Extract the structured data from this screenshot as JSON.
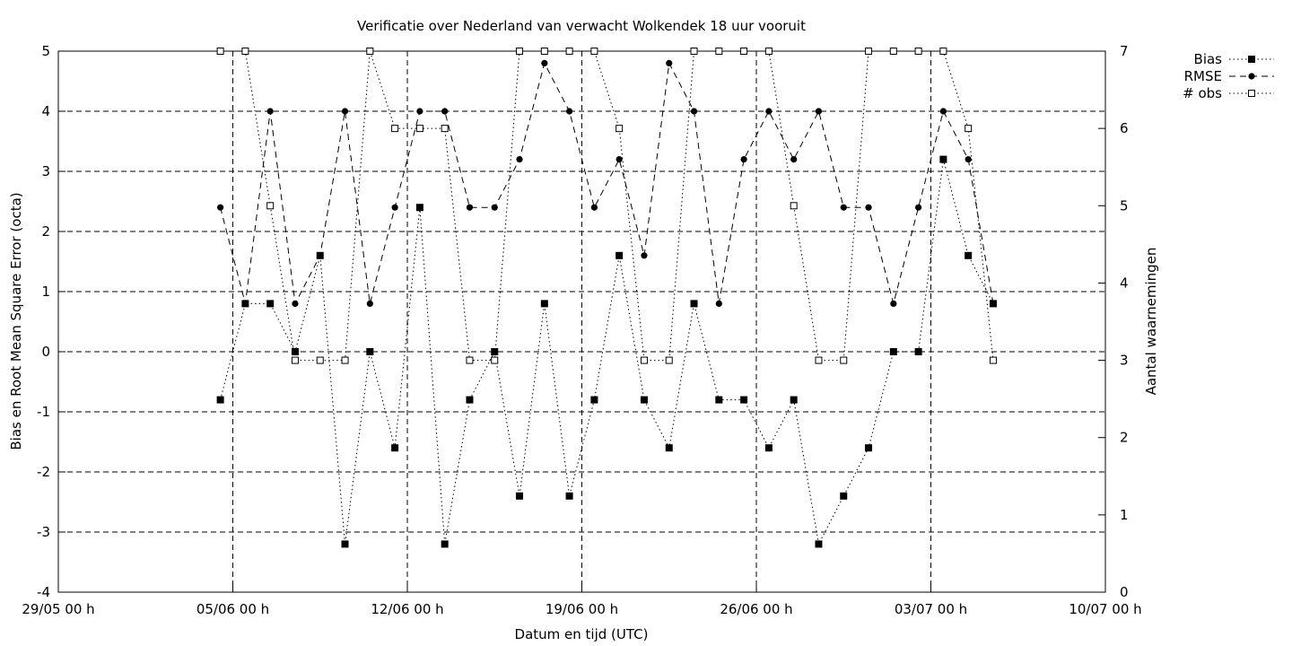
{
  "chart_data": {
    "type": "line",
    "title": "Verificatie over Nederland van verwacht Wolkendek 18 uur vooruit",
    "xlabel": "Datum en tijd (UTC)",
    "ylabel": "Bias en Root Mean Square Error (octa)",
    "y2label": "Aantal waarnemingen",
    "xlim": [
      0,
      42
    ],
    "ylim": [
      -4,
      5
    ],
    "y2lim": [
      0,
      7
    ],
    "x_ticks": [
      {
        "v": 0,
        "label": "29/05 00 h"
      },
      {
        "v": 7,
        "label": "05/06 00 h"
      },
      {
        "v": 14,
        "label": "12/06 00 h"
      },
      {
        "v": 21,
        "label": "19/06 00 h"
      },
      {
        "v": 28,
        "label": "26/06 00 h"
      },
      {
        "v": 35,
        "label": "03/07 00 h"
      },
      {
        "v": 42,
        "label": "10/07 00 h"
      }
    ],
    "y_ticks": [
      "-4",
      "-3",
      "-2",
      "-1",
      "0",
      "1",
      "2",
      "3",
      "4",
      "5"
    ],
    "y2_ticks": [
      "0",
      "1",
      "2",
      "3",
      "4",
      "5",
      "6",
      "7"
    ],
    "grid": true,
    "legend_position": "top-right-outside",
    "series": [
      {
        "name": "Bias",
        "axis": "y",
        "marker": "filled-square",
        "line": "dotted",
        "x": [
          6.5,
          7.5,
          8.5,
          9.5,
          10.5,
          11.5,
          12.5,
          13.5,
          14.5,
          15.5,
          16.5,
          17.5,
          18.5,
          19.5,
          20.5,
          21.5,
          22.5,
          23.5,
          24.5,
          25.5,
          26.5,
          27.5,
          28.5,
          29.5,
          30.5,
          31.5,
          32.5,
          33.5,
          34.5,
          35.5,
          36.5,
          37.5
        ],
        "values": [
          -0.8,
          0.8,
          0.8,
          0.0,
          1.6,
          -3.2,
          0.0,
          -1.6,
          2.4,
          -3.2,
          -0.8,
          0.0,
          -2.4,
          0.8,
          -2.4,
          -0.8,
          1.6,
          -0.8,
          -1.6,
          0.8,
          -0.8,
          -0.8,
          -1.6,
          -0.8,
          -3.2,
          -2.4,
          -1.6,
          0.0,
          0.0,
          3.2,
          1.6,
          0.8
        ]
      },
      {
        "name": "RMSE",
        "axis": "y",
        "marker": "filled-circle",
        "line": "dashed",
        "x": [
          6.5,
          7.5,
          8.5,
          9.5,
          10.5,
          11.5,
          12.5,
          13.5,
          14.5,
          15.5,
          16.5,
          17.5,
          18.5,
          19.5,
          20.5,
          21.5,
          22.5,
          23.5,
          24.5,
          25.5,
          26.5,
          27.5,
          28.5,
          29.5,
          30.5,
          31.5,
          32.5,
          33.5,
          34.5,
          35.5,
          36.5,
          37.5
        ],
        "values": [
          2.4,
          0.8,
          4.0,
          0.8,
          1.6,
          4.0,
          0.8,
          2.4,
          4.0,
          4.0,
          2.4,
          2.4,
          3.2,
          4.8,
          4.0,
          2.4,
          3.2,
          1.6,
          4.8,
          4.0,
          0.8,
          3.2,
          4.0,
          3.2,
          4.0,
          2.4,
          2.4,
          0.8,
          2.4,
          4.0,
          3.2,
          0.8
        ]
      },
      {
        "name": "# obs",
        "axis": "y2",
        "marker": "open-square",
        "line": "dotted",
        "x": [
          6.5,
          7.5,
          8.5,
          9.5,
          10.5,
          11.5,
          12.5,
          13.5,
          14.5,
          15.5,
          16.5,
          17.5,
          18.5,
          19.5,
          20.5,
          21.5,
          22.5,
          23.5,
          24.5,
          25.5,
          26.5,
          27.5,
          28.5,
          29.5,
          30.5,
          31.5,
          32.5,
          33.5,
          34.5,
          35.5,
          36.5,
          37.5
        ],
        "values": [
          7,
          7,
          5,
          3,
          3,
          3,
          7,
          6,
          6,
          6,
          3,
          3,
          7,
          7,
          7,
          7,
          6,
          3,
          3,
          7,
          7,
          7,
          7,
          5,
          3,
          3,
          7,
          7,
          7,
          7,
          6,
          3
        ]
      }
    ]
  }
}
